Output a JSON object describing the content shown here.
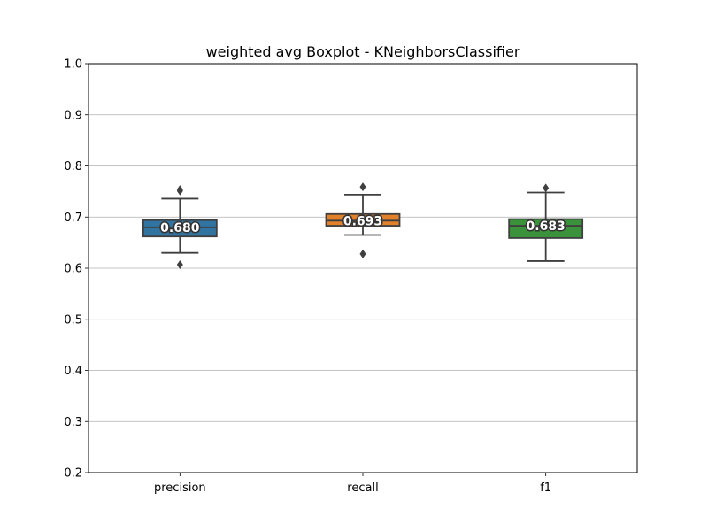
{
  "chart_data": {
    "type": "box",
    "title": "weighted avg Boxplot - KNeighborsClassifier",
    "xlabel": "",
    "ylabel": "",
    "ylim": [
      0.2,
      1.0
    ],
    "yticks": [
      0.2,
      0.3,
      0.4,
      0.5,
      0.6,
      0.7,
      0.8,
      0.9,
      1.0
    ],
    "ytick_labels": [
      "0.2",
      "0.3",
      "0.4",
      "0.5",
      "0.6",
      "0.7",
      "0.8",
      "0.9",
      "1.0"
    ],
    "grid": "horizontal",
    "categories": [
      "precision",
      "recall",
      "f1"
    ],
    "boxes": [
      {
        "category": "precision",
        "color": "#3274a1",
        "whisker_low": 0.63,
        "q1": 0.662,
        "median": 0.68,
        "q3": 0.694,
        "whisker_high": 0.736,
        "outliers": [
          0.607,
          0.751,
          0.754
        ],
        "mean_label": "0.680"
      },
      {
        "category": "recall",
        "color": "#e1812c",
        "whisker_low": 0.665,
        "q1": 0.683,
        "median": 0.693,
        "q3": 0.706,
        "whisker_high": 0.744,
        "outliers": [
          0.628,
          0.759
        ],
        "mean_label": "0.693"
      },
      {
        "category": "f1",
        "color": "#3a923a",
        "whisker_low": 0.614,
        "q1": 0.659,
        "median": 0.683,
        "q3": 0.696,
        "whisker_high": 0.748,
        "outliers": [
          0.757
        ],
        "mean_label": "0.683"
      }
    ]
  }
}
